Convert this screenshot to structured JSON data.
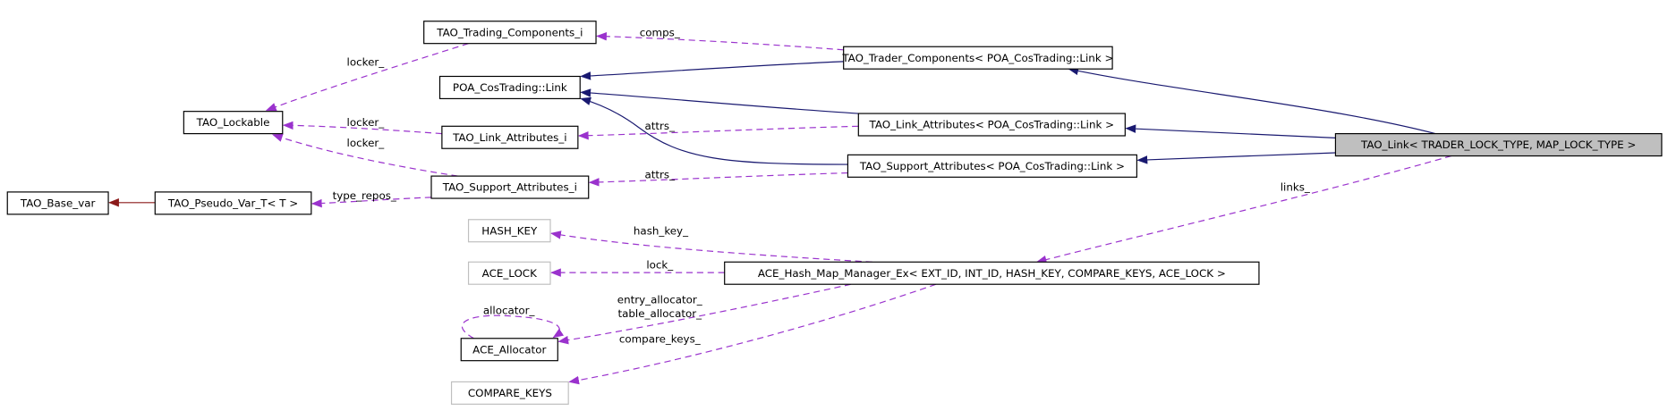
{
  "nodes": [
    {
      "label": "TAO_Trading_Components_i"
    },
    {
      "label": "TAO_Trader_Components< POA_CosTrading::Link >"
    },
    {
      "label": "POA_CosTrading::Link"
    },
    {
      "label": "TAO_Lockable"
    },
    {
      "label": "TAO_Link_Attributes< POA_CosTrading::Link >"
    },
    {
      "label": "TAO_Link_Attributes_i"
    },
    {
      "label": "TAO_Link< TRADER_LOCK_TYPE, MAP_LOCK_TYPE >"
    },
    {
      "label": "TAO_Support_Attributes< POA_CosTrading::Link >"
    },
    {
      "label": "TAO_Support_Attributes_i"
    },
    {
      "label": "TAO_Base_var"
    },
    {
      "label": "TAO_Pseudo_Var_T< T >"
    },
    {
      "label": "HASH_KEY"
    },
    {
      "label": "ACE_LOCK"
    },
    {
      "label": "ACE_Hash_Map_Manager_Ex< EXT_ID, INT_ID, HASH_KEY, COMPARE_KEYS, ACE_LOCK >"
    },
    {
      "label": "ACE_Allocator"
    },
    {
      "label": "COMPARE_KEYS"
    }
  ],
  "edge_labels": [
    "comps_",
    "locker_",
    "locker_",
    "locker_",
    "attrs_",
    "attrs_",
    "type_repos_",
    "links_",
    "hash_key_",
    "lock_",
    "allocator_",
    "entry_allocator_",
    "table_allocator_",
    "compare_keys_"
  ]
}
